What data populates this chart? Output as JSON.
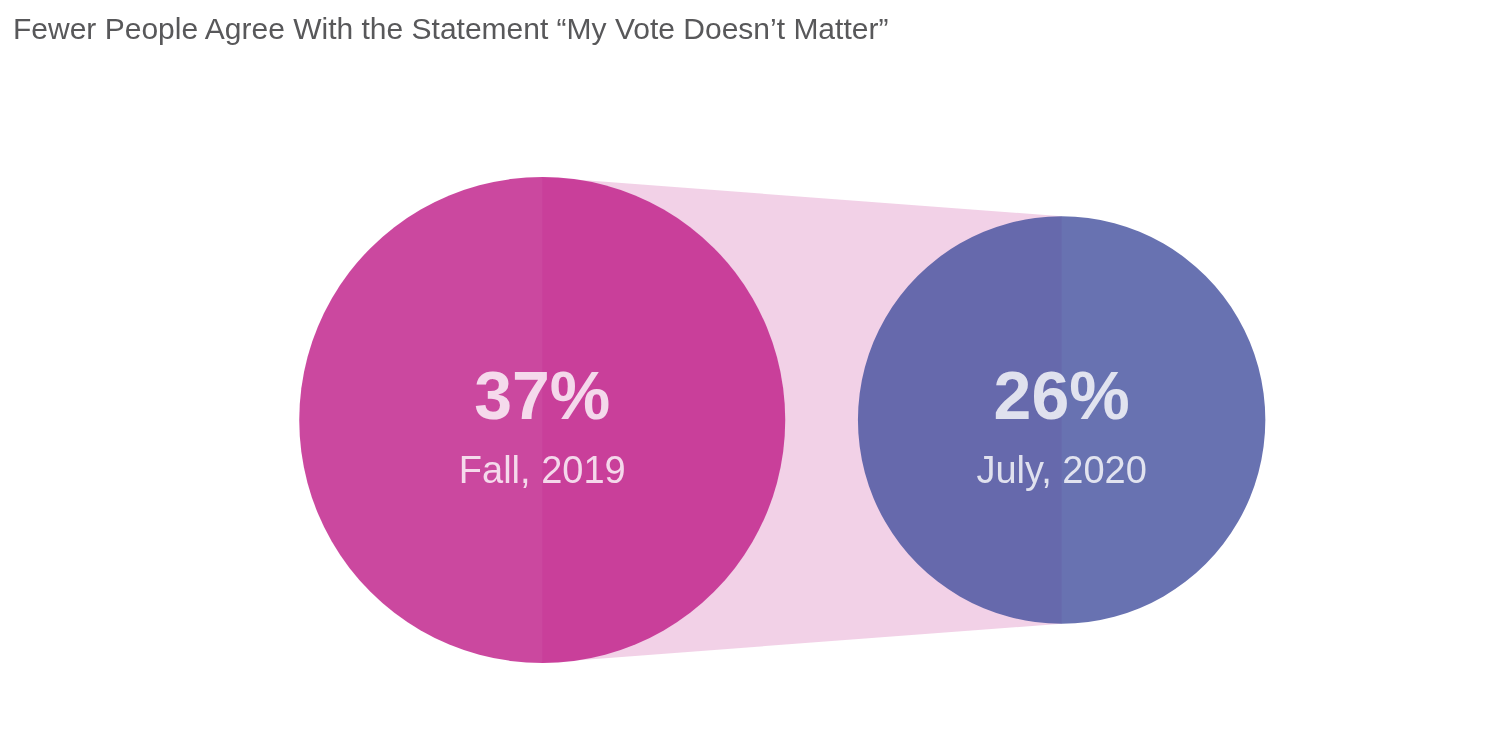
{
  "chart_data": {
    "type": "other",
    "title": "Fewer People Agree With the Statement “My Vote Doesn’t Matter”",
    "categories": [
      "Fall, 2019",
      "July, 2020"
    ],
    "values": [
      37,
      26
    ],
    "value_labels": [
      "37%",
      "26%"
    ],
    "colors": [
      "#be1a87",
      "#424f9d"
    ]
  }
}
